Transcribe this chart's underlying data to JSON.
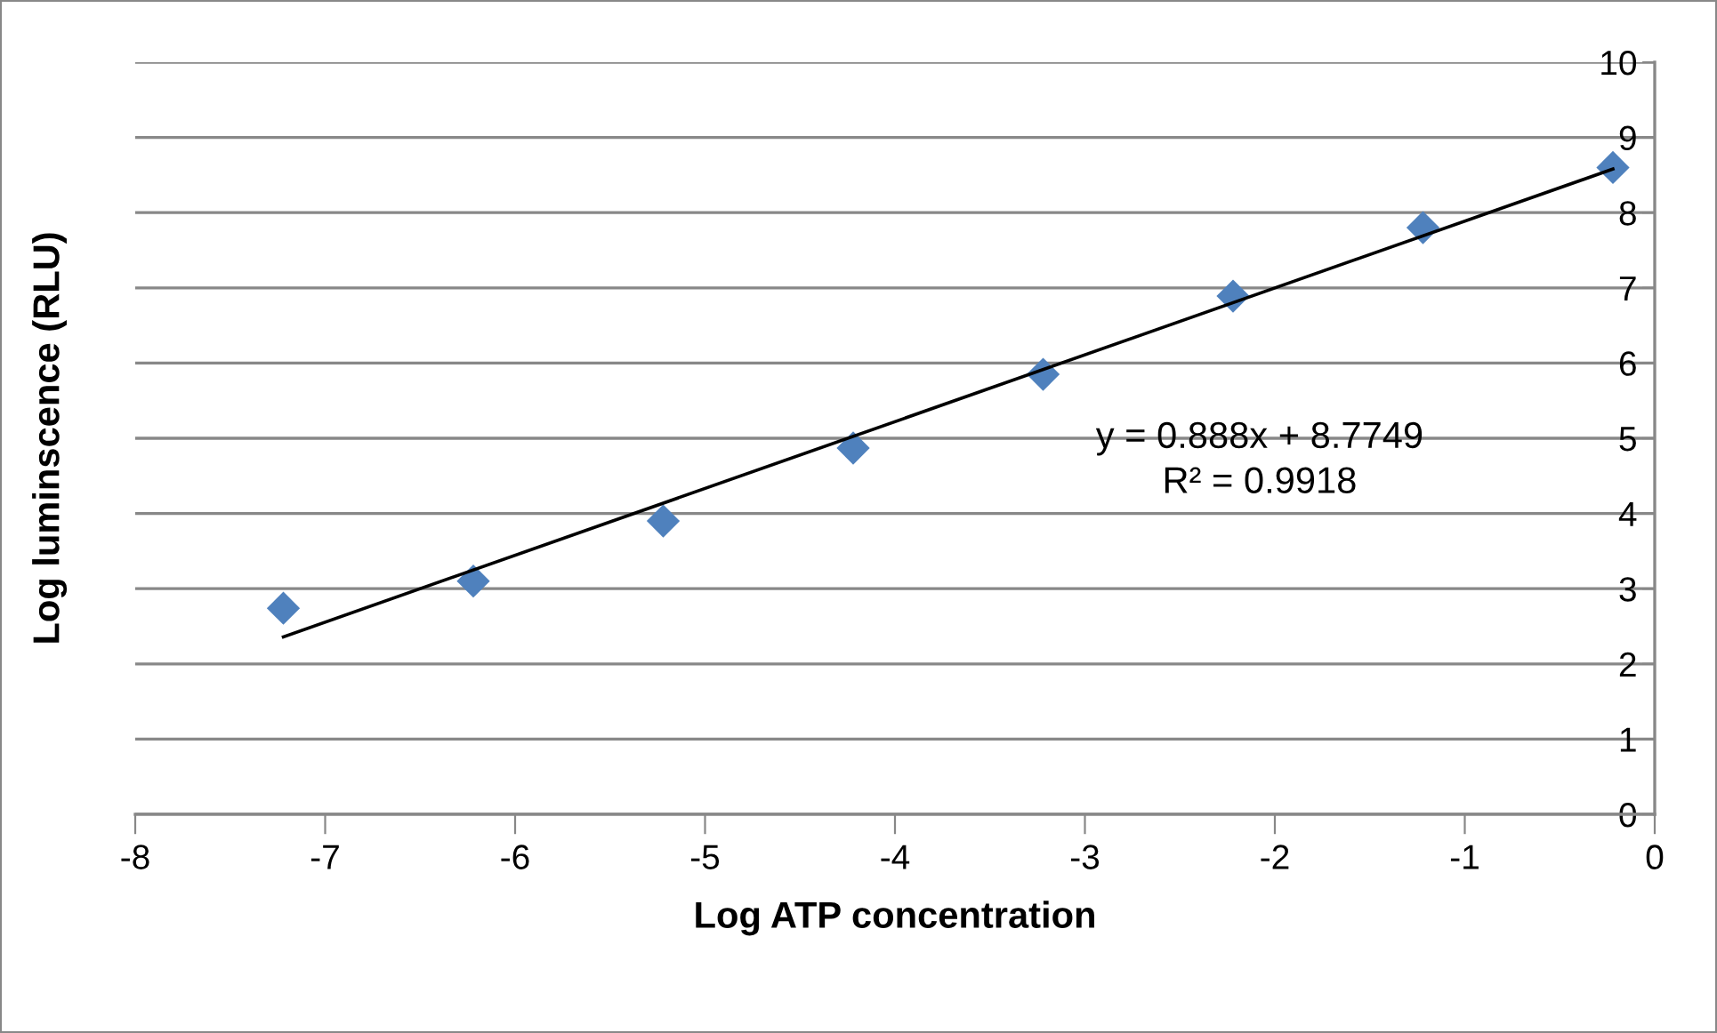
{
  "chart_data": {
    "type": "scatter",
    "xlabel": "Log ATP concentration",
    "ylabel": "Log luminscence (RLU)",
    "annotations": [
      "y = 0.888x + 8.7749",
      "R² = 0.9918"
    ],
    "series": [
      {
        "color": "#4f81bd",
        "marker": "diamond",
        "x": [
          -7.22,
          -6.22,
          -5.22,
          -4.22,
          -3.22,
          -2.22,
          -1.22,
          -0.22
        ],
        "values": [
          2.74,
          3.1,
          3.9,
          4.87,
          5.85,
          6.89,
          7.8,
          8.6
        ]
      },
      {
        "type": "line",
        "color": "#000000",
        "marker": "none",
        "line_style": "solid",
        "x": [
          -7.22,
          -0.22
        ],
        "values": [
          2.36,
          8.58
        ]
      }
    ],
    "xlim": [
      -8,
      0
    ],
    "ylim": [
      0,
      10
    ],
    "xticks": [
      -8,
      -7,
      -6,
      -5,
      -4,
      -3,
      -2,
      -1,
      0
    ],
    "yticks": [
      0,
      1,
      2,
      3,
      4,
      5,
      6,
      7,
      8,
      9,
      10
    ],
    "grid": "y"
  }
}
